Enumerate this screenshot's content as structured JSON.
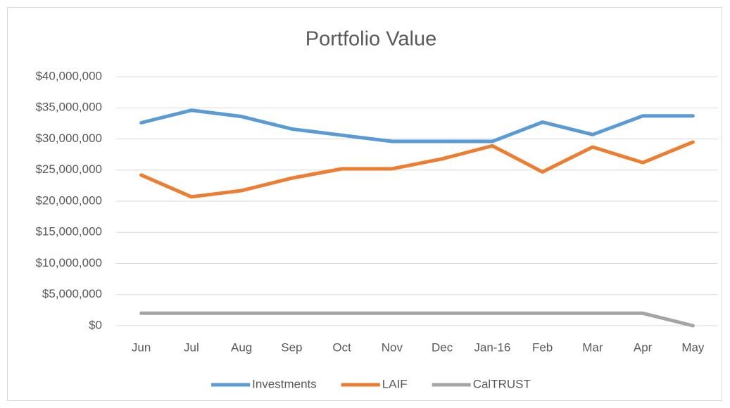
{
  "chart_data": {
    "type": "line",
    "title": "Portfolio Value",
    "categories": [
      "Jun",
      "Jul",
      "Aug",
      "Sep",
      "Oct",
      "Nov",
      "Dec",
      "Jan-16",
      "Feb",
      "Mar",
      "Apr",
      "May"
    ],
    "series": [
      {
        "name": "Investments",
        "color": "#5b9bd5",
        "values": [
          32.6,
          34.6,
          33.6,
          31.6,
          30.6,
          29.6,
          29.6,
          29.6,
          32.7,
          30.7,
          33.7,
          33.7
        ]
      },
      {
        "name": "LAIF",
        "color": "#ed7d31",
        "values": [
          24.2,
          20.7,
          21.7,
          23.7,
          25.2,
          25.2,
          26.8,
          28.9,
          24.7,
          28.7,
          26.2,
          29.5
        ]
      },
      {
        "name": "CalTRUST",
        "color": "#a5a5a5",
        "values": [
          2.0,
          2.0,
          2.0,
          2.0,
          2.0,
          2.0,
          2.0,
          2.0,
          2.0,
          2.0,
          2.0,
          0
        ]
      }
    ],
    "ylim": [
      0,
      40
    ],
    "yticks": [
      {
        "value": 0,
        "label": "$0"
      },
      {
        "value": 5,
        "label": "$5,000,000"
      },
      {
        "value": 10,
        "label": "$10,000,000"
      },
      {
        "value": 15,
        "label": "$15,000,000"
      },
      {
        "value": 20,
        "label": "$20,000,000"
      },
      {
        "value": 25,
        "label": "$25,000,000"
      },
      {
        "value": 30,
        "label": "$30,000,000"
      },
      {
        "value": 35,
        "label": "$35,000,000"
      },
      {
        "value": 40,
        "label": "$40,000,000"
      }
    ],
    "grid": true,
    "legend": "bottom"
  }
}
